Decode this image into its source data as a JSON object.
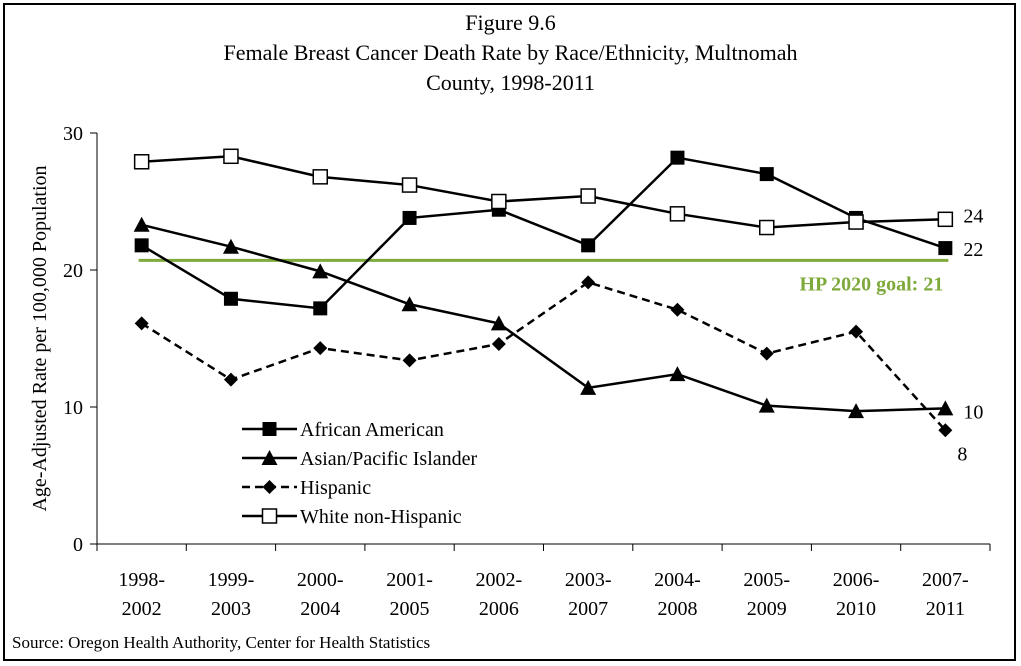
{
  "figure": {
    "title_line1": "Figure 9.6",
    "title_line2": "Female Breast Cancer Death Rate by Race/Ethnicity, Multnomah",
    "title_line3": "County, 1998-2011",
    "source": "Source: Oregon Health Authority, Center for Health Statistics"
  },
  "chart_data": {
    "type": "line",
    "title": "Female Breast Cancer Death Rate by Race/Ethnicity, Multnomah County, 1998-2011",
    "xlabel": "",
    "ylabel": "Age-Adjusted Rate per 100,000 Population",
    "ylim": [
      0,
      30
    ],
    "yticks": [
      0,
      10,
      20,
      30
    ],
    "categories": [
      [
        "1998-",
        "2002"
      ],
      [
        "1999-",
        "2003"
      ],
      [
        "2000-",
        "2004"
      ],
      [
        "2001-",
        "2005"
      ],
      [
        "2002-",
        "2006"
      ],
      [
        "2003-",
        "2007"
      ],
      [
        "2004-",
        "2008"
      ],
      [
        "2005-",
        "2009"
      ],
      [
        "2006-",
        "2010"
      ],
      [
        "2007-",
        "2011"
      ]
    ],
    "series": [
      {
        "name": "African American",
        "values": [
          21.8,
          17.9,
          17.2,
          23.8,
          24.4,
          21.8,
          28.2,
          27.0,
          23.8,
          21.6
        ],
        "marker": "square",
        "dash": false,
        "end_label": "22"
      },
      {
        "name": "Asian/Pacific Islander",
        "values": [
          23.3,
          21.7,
          19.9,
          17.5,
          16.1,
          11.4,
          12.4,
          10.1,
          9.7,
          9.9
        ],
        "marker": "triangle",
        "dash": true,
        "end_label": "10"
      },
      {
        "name": "Hispanic",
        "values": [
          16.1,
          12.0,
          14.3,
          13.4,
          14.6,
          19.1,
          17.1,
          13.9,
          15.5,
          8.3
        ],
        "marker": "diamond",
        "dash": true,
        "end_label": "8"
      },
      {
        "name": "White non-Hispanic",
        "values": [
          27.9,
          28.3,
          26.8,
          26.2,
          25.0,
          25.4,
          24.1,
          23.1,
          23.5,
          23.7
        ],
        "marker": "open-square",
        "dash": false,
        "end_label": "24"
      }
    ],
    "reference_line": {
      "value": 20.7,
      "label": "HP 2020 goal: 21",
      "color": "#7eaa3c"
    },
    "legend_position": "lower-left",
    "grid": false
  }
}
